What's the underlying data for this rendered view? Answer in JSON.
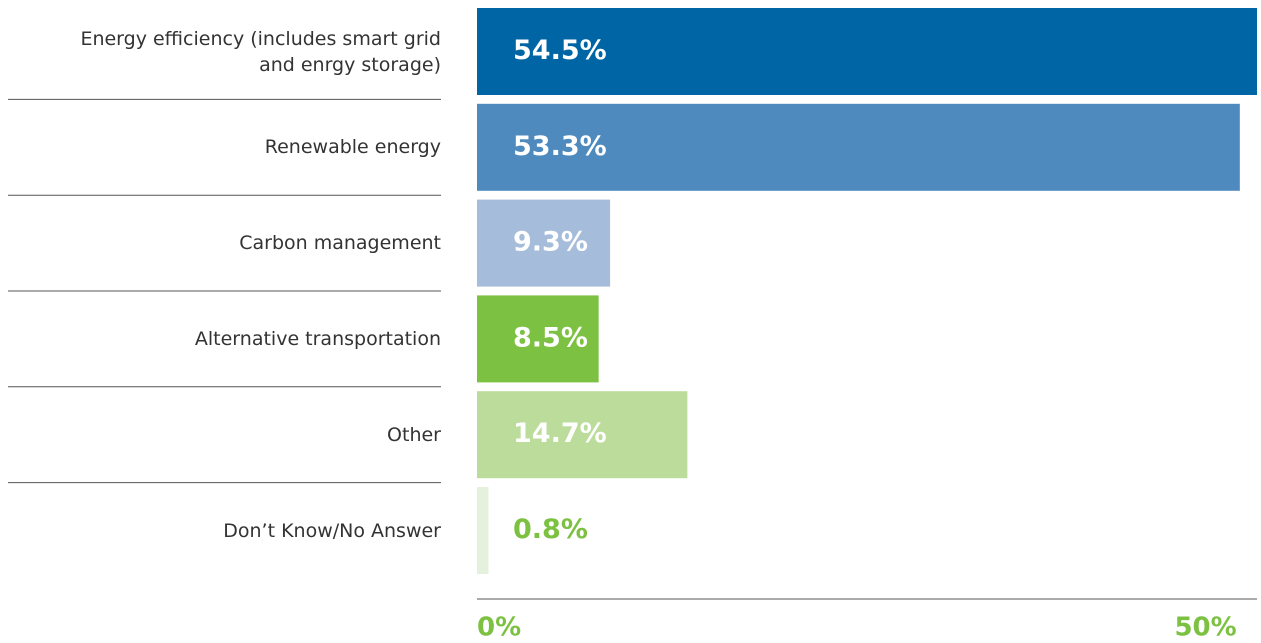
{
  "chart_data": {
    "type": "bar",
    "orientation": "horizontal",
    "categories": [
      "Energy efficiency (includes smart grid and enrgy storage)",
      "Renewable energy",
      "Carbon management",
      "Alternative transportation",
      "Other",
      "Don’t Know/No Answer"
    ],
    "values": [
      54.5,
      53.3,
      9.3,
      8.5,
      14.7,
      0.8
    ],
    "value_labels": [
      "54.5%",
      "53.3%",
      "9.3%",
      "8.5%",
      "14.7%",
      "0.8%"
    ],
    "colors": [
      "#0065a4",
      "#4f8abe",
      "#a6bcdb",
      "#7dc142",
      "#bcdc9c",
      "#e5f1dc"
    ],
    "xlim": [
      0,
      54.5
    ],
    "xticks": [
      {
        "value": 0,
        "label": "0%"
      },
      {
        "value": 50,
        "label": "50%"
      }
    ]
  }
}
